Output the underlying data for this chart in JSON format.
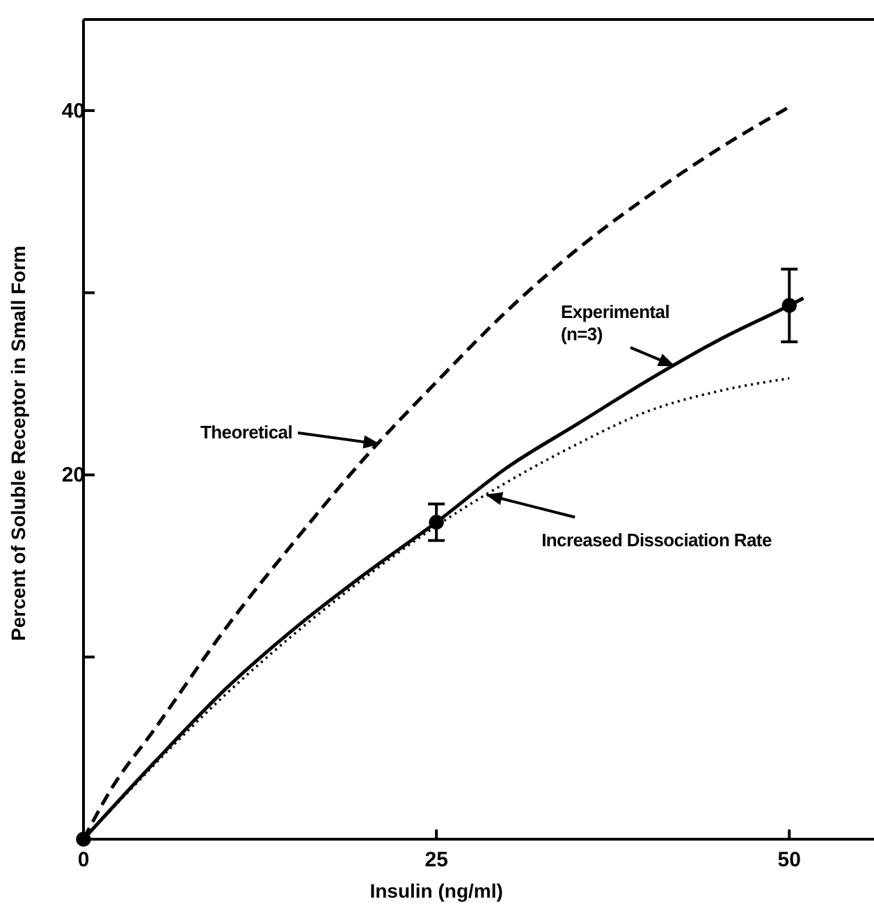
{
  "chart_data": {
    "type": "line",
    "xlabel": "Insulin (ng/ml)",
    "ylabel": "Percent of Soluble Receptor in Small Form",
    "xlim": [
      0,
      56
    ],
    "ylim": [
      0,
      45
    ],
    "xticks": [
      0,
      25,
      50
    ],
    "yticks": [
      {
        "value": 0,
        "label": null
      },
      {
        "value": 10,
        "label": null
      },
      20,
      {
        "value": 30,
        "label": null
      },
      40
    ],
    "grid": false,
    "annotations": [
      {
        "text": "Theoretical",
        "x": 20.9,
        "y": 21.7
      },
      {
        "text": "Experimental (n=3)",
        "x": 41.8,
        "y": 26.0
      },
      {
        "text": "Increased Dissociation Rate",
        "x": 28.6,
        "y": 18.9
      }
    ],
    "series": [
      {
        "color": "#000000",
        "line_style": "dashed",
        "marker": "none",
        "x": [
          0,
          2,
          5,
          10,
          15,
          20,
          25,
          30,
          35,
          40,
          45,
          50
        ],
        "values": [
          0,
          2.8,
          6.0,
          11.5,
          16.4,
          21.0,
          25.1,
          29.0,
          32.4,
          35.3,
          37.9,
          40.2
        ]
      },
      {
        "color": "#000000",
        "line_style": "solid",
        "marker": "none",
        "x": [
          0,
          5,
          10,
          15,
          20,
          25,
          30,
          35,
          40,
          45,
          50,
          51
        ],
        "values": [
          0,
          4.2,
          8.2,
          11.6,
          14.6,
          17.4,
          20.4,
          22.8,
          25.2,
          27.4,
          29.3,
          29.7
        ]
      },
      {
        "color": "#000000",
        "line_style": "dotted",
        "marker": "none",
        "x": [
          0,
          10,
          20,
          25,
          30,
          35,
          40,
          45,
          50
        ],
        "values": [
          0,
          7.9,
          14.4,
          17.2,
          19.6,
          21.7,
          23.5,
          24.6,
          25.3
        ]
      },
      {
        "type": "scatter",
        "color": "#000000",
        "marker": "circle",
        "x": [
          0,
          25,
          50
        ],
        "values": [
          0,
          17.4,
          29.3
        ],
        "errors": [
          null,
          1.0,
          2.0
        ]
      }
    ]
  }
}
